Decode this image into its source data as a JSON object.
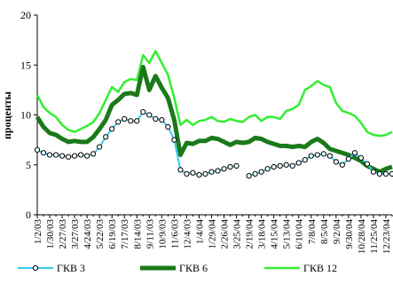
{
  "chart_data": {
    "type": "line",
    "y_label": "проценты",
    "categories": [
      "1/2/03",
      null,
      "1/30/03",
      null,
      "2/27/03",
      null,
      "3/27/03",
      null,
      "4/24/03",
      null,
      "5/22/03",
      null,
      "6/19/03",
      null,
      "7/17/03",
      null,
      "8/14/03",
      null,
      "9/11/03",
      null,
      "10/9/03",
      null,
      "11/6/03",
      null,
      "12/4/03",
      null,
      "1/4/04",
      null,
      "1/29/04",
      null,
      "2/26/04",
      null,
      "3/25/04",
      null,
      "2/19/04",
      null,
      "3/18/04",
      null,
      "4/15/04",
      null,
      "5/13/04",
      null,
      "6/10/04",
      null,
      "7/8/04",
      null,
      "8/5/04",
      null,
      "9/2/04",
      null,
      "9/30/04",
      null,
      "10/28/04",
      null,
      "11/25/04",
      null,
      "12/23/04",
      null
    ],
    "series": [
      {
        "name": "ГКВ 3",
        "color": "#33ccee",
        "marker": true,
        "values": [
          6.5,
          6.2,
          6.0,
          6.0,
          5.9,
          5.8,
          5.9,
          6.0,
          5.9,
          6.1,
          6.8,
          7.8,
          8.6,
          9.3,
          9.6,
          9.4,
          9.4,
          10.3,
          10.0,
          9.6,
          9.5,
          8.8,
          7.5,
          4.5,
          4.1,
          4.2,
          4.0,
          4.1,
          4.3,
          4.4,
          4.6,
          4.8,
          4.9,
          null,
          3.9,
          4.1,
          4.3,
          4.6,
          4.8,
          4.9,
          5.0,
          4.9,
          5.2,
          5.5,
          5.9,
          6.0,
          6.1,
          5.9,
          5.3,
          5.0,
          5.6,
          6.2,
          5.7,
          5.1,
          4.3,
          4.1,
          4.1,
          4.1
        ]
      },
      {
        "name": "ГКВ 6",
        "color": "#1a7a1a",
        "marker": false,
        "values": [
          9.8,
          8.8,
          8.2,
          8.0,
          7.6,
          7.3,
          7.4,
          7.3,
          7.3,
          7.8,
          8.6,
          9.5,
          11.0,
          11.5,
          12.1,
          12.2,
          12.0,
          14.8,
          12.5,
          13.9,
          12.7,
          11.7,
          9.5,
          6.0,
          7.2,
          7.1,
          7.4,
          7.4,
          7.7,
          7.6,
          7.3,
          7.0,
          7.3,
          7.2,
          7.3,
          7.7,
          7.6,
          7.3,
          7.1,
          6.9,
          6.9,
          6.8,
          6.9,
          6.8,
          7.3,
          7.6,
          7.2,
          6.6,
          6.4,
          6.2,
          6.0,
          5.7,
          5.4,
          4.9,
          4.6,
          4.3,
          4.6,
          4.8
        ]
      },
      {
        "name": "ГКВ 12",
        "color": "#33ee33",
        "marker": false,
        "values": [
          12.0,
          10.8,
          10.2,
          9.8,
          9.0,
          8.5,
          8.3,
          8.6,
          8.9,
          9.3,
          10.2,
          11.5,
          12.8,
          12.3,
          13.3,
          13.6,
          13.5,
          16.0,
          15.2,
          16.4,
          15.2,
          14.0,
          11.7,
          9.0,
          9.5,
          9.0,
          9.4,
          9.5,
          9.8,
          9.4,
          9.3,
          9.6,
          9.4,
          9.3,
          9.8,
          10.0,
          9.4,
          9.8,
          9.8,
          9.6,
          10.4,
          10.6,
          11.0,
          12.5,
          12.9,
          13.4,
          13.0,
          12.8,
          11.2,
          10.4,
          10.2,
          9.9,
          9.2,
          8.3,
          8.0,
          7.9,
          8.0,
          8.3
        ]
      }
    ],
    "ylim": [
      0,
      20
    ],
    "yticks": [
      0,
      5,
      10,
      15,
      20
    ]
  }
}
